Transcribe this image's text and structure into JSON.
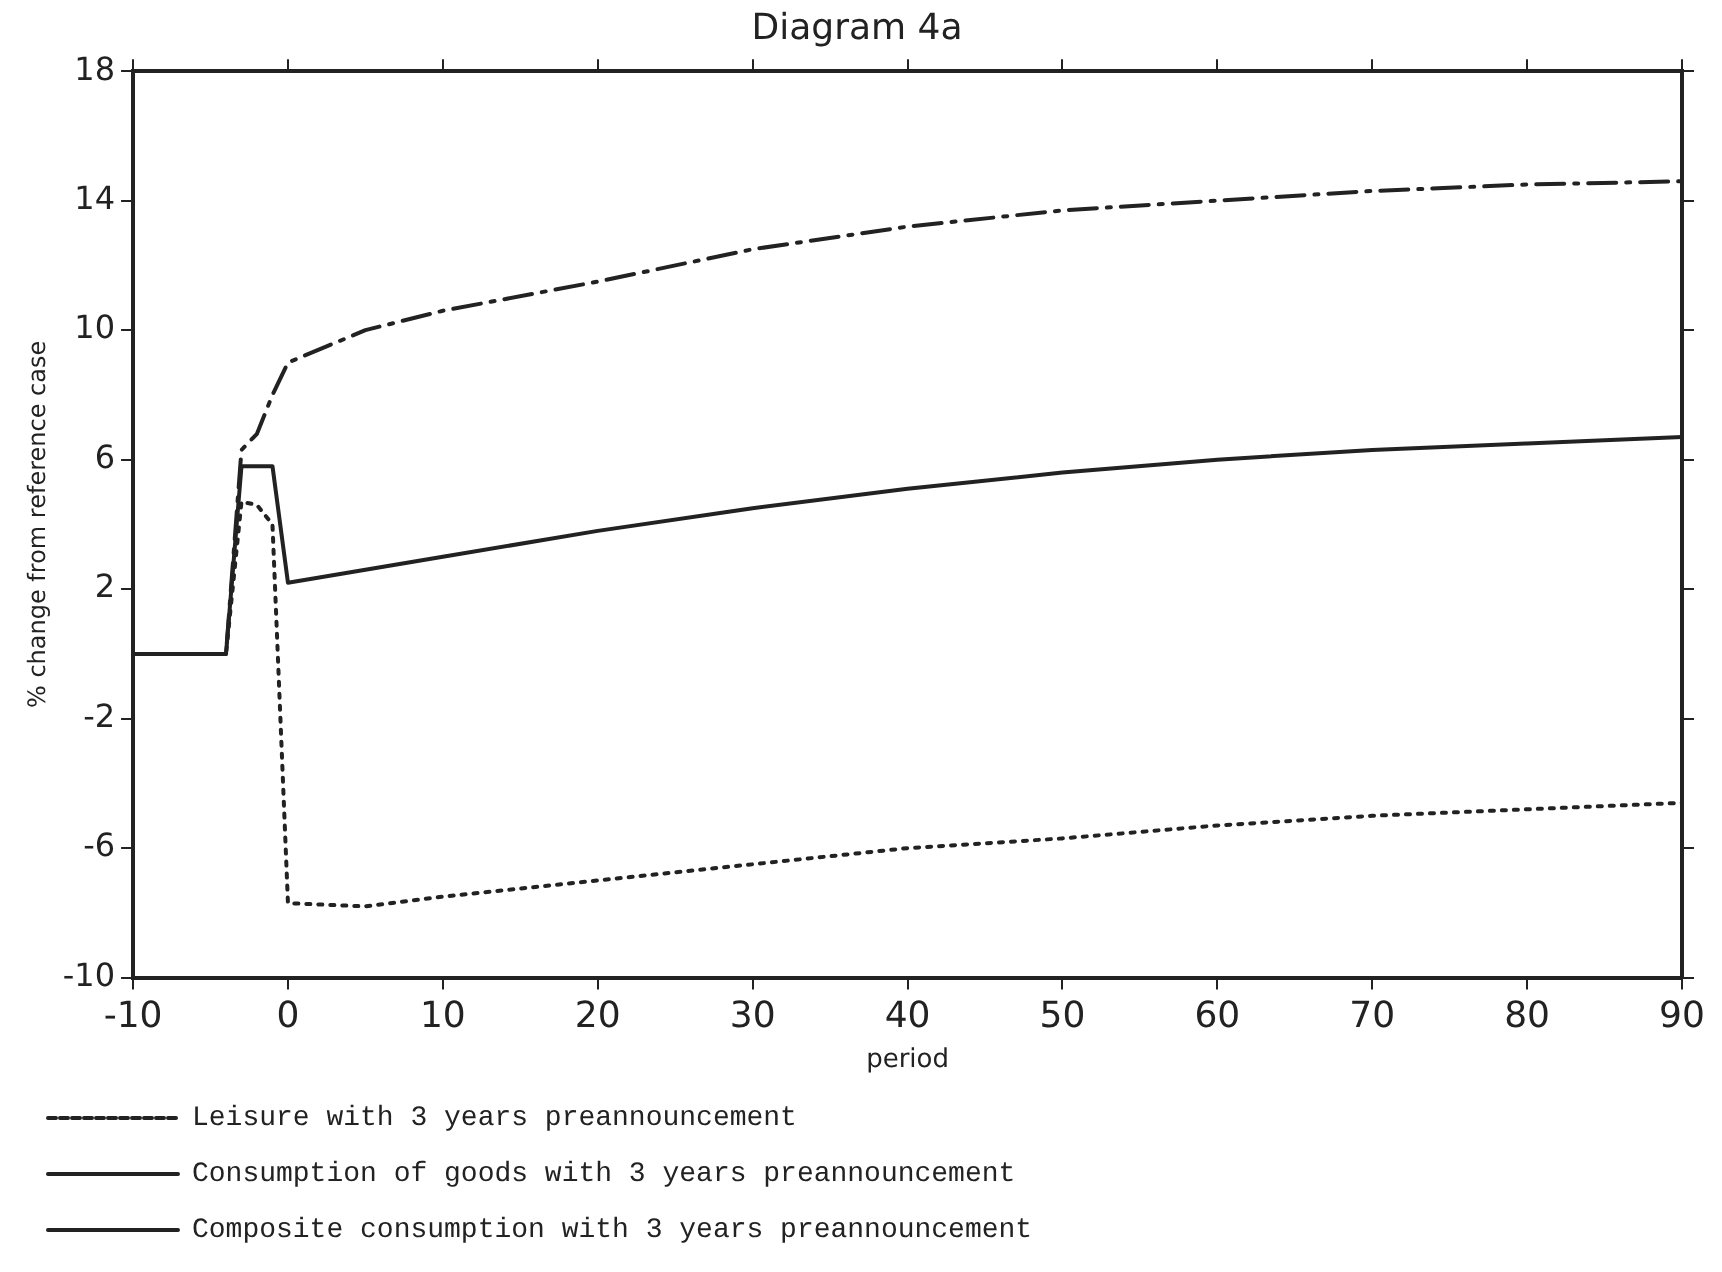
{
  "chart_data": {
    "type": "line",
    "title": "Diagram 4a",
    "xlabel": "period",
    "ylabel": "% change from reference case",
    "xlim": [
      -10,
      90
    ],
    "xticks": [
      -10,
      0,
      10,
      20,
      30,
      40,
      50,
      60,
      70,
      80,
      90
    ],
    "ylim": [
      -10,
      18
    ],
    "yticks": [
      -10,
      -6,
      -2,
      2,
      6,
      10,
      14,
      18
    ],
    "grid": false,
    "legend": "bottom",
    "marker": "none",
    "series": [
      {
        "name": "Leisure with 3 years preannouncement",
        "color": "#222222",
        "line_style": "dotted",
        "x": [
          -10,
          -4,
          -3,
          -2,
          -1,
          0,
          5,
          10,
          20,
          30,
          40,
          50,
          60,
          70,
          80,
          90
        ],
        "values": [
          0,
          0,
          4.7,
          4.6,
          4,
          -7.7,
          -7.8,
          -7.5,
          -7,
          -6.5,
          -6,
          -5.7,
          -5.3,
          -5,
          -4.8,
          -4.6
        ]
      },
      {
        "name": "Consumption of goods with 3 years preannouncement",
        "color": "#222222",
        "line_style": "dashed",
        "x": [
          -10,
          -4,
          -3,
          -2,
          -1,
          0,
          5,
          10,
          20,
          30,
          40,
          50,
          60,
          70,
          80,
          90
        ],
        "values": [
          0,
          0,
          6.3,
          6.8,
          8,
          9,
          10,
          10.6,
          11.5,
          12.5,
          13.2,
          13.7,
          14,
          14.3,
          14.5,
          14.6
        ]
      },
      {
        "name": "Composite consumption with 3 years preannouncement",
        "color": "#222222",
        "line_style": "solid",
        "x": [
          -10,
          -4,
          -3,
          -1,
          0,
          10,
          20,
          30,
          40,
          50,
          60,
          70,
          80,
          90
        ],
        "values": [
          0,
          0,
          5.8,
          5.8,
          2.2,
          3,
          3.8,
          4.5,
          5.1,
          5.6,
          6,
          6.3,
          6.5,
          6.7
        ]
      }
    ]
  }
}
